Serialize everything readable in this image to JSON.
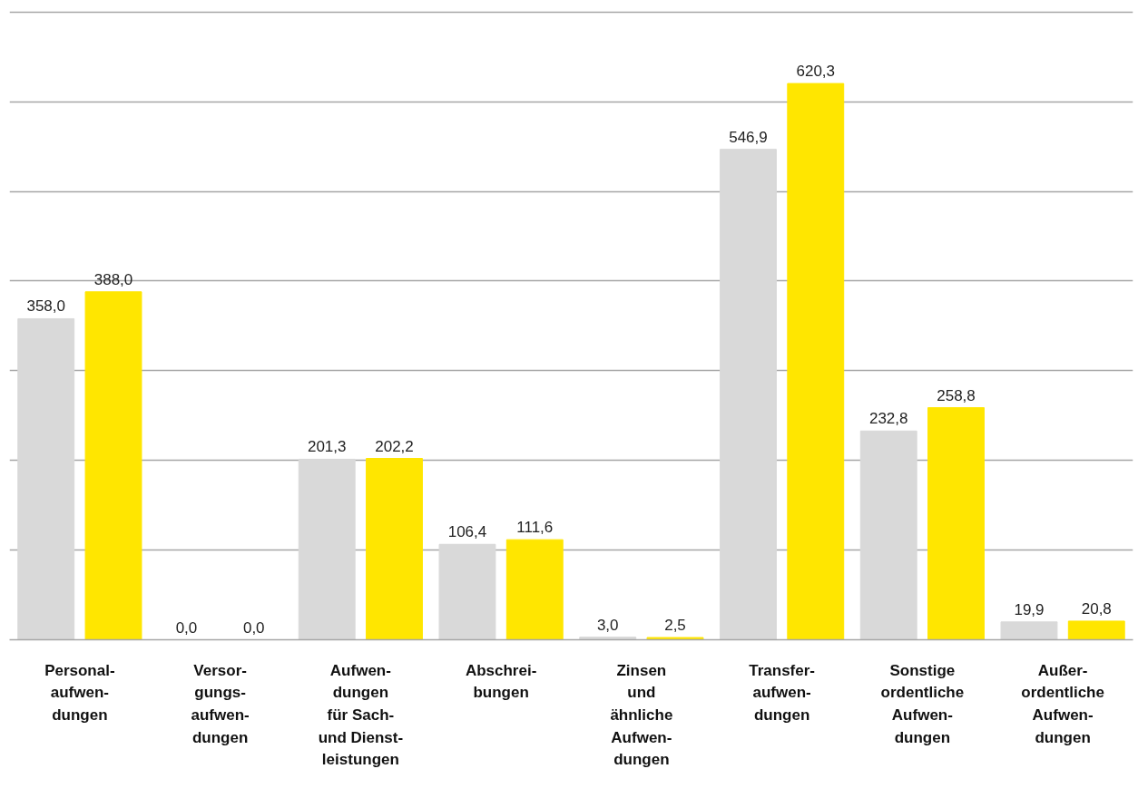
{
  "chart_data": {
    "type": "bar",
    "categories": [
      "Personal-\naufwen-\ndungen",
      "Versor-\ngungs-\naufwen-\ndungen",
      "Aufwen-\ndungen\nfür Sach-\nund Dienst-\nleistungen",
      "Abschrei-\nbungen",
      "Zinsen\nund\nähnliche\nAufwen-\ndungen",
      "Transfer-\naufwen-\ndungen",
      "Sonstige\nordentliche\nAufwen-\ndungen",
      "Außer-\nordentliche\nAufwen-\ndungen"
    ],
    "series": [
      {
        "color": "#d9d9d9",
        "values": [
          358.0,
          0.0,
          201.3,
          106.4,
          3.0,
          546.9,
          232.8,
          19.9
        ],
        "value_labels": [
          "358,0",
          "0,0",
          "201,3",
          "106,4",
          "3,0",
          "546,9",
          "232,8",
          "19,9"
        ]
      },
      {
        "color": "#ffe600",
        "values": [
          388.0,
          0.0,
          202.2,
          111.6,
          2.5,
          620.3,
          258.8,
          20.8
        ],
        "value_labels": [
          "388,0",
          "0,0",
          "202,2",
          "111,6",
          "2,5",
          "620,3",
          "258,8",
          "20,8"
        ]
      }
    ],
    "yticks": [
      {
        "value": 0,
        "label": null
      },
      {
        "value": 100,
        "label": null
      },
      {
        "value": 200,
        "label": null
      },
      {
        "value": 300,
        "label": null
      },
      {
        "value": 400,
        "label": null
      },
      {
        "value": 500,
        "label": null
      },
      {
        "value": 600,
        "label": null
      },
      {
        "value": 700,
        "label": null
      }
    ],
    "grid": "y",
    "tick_labels": "x"
  }
}
